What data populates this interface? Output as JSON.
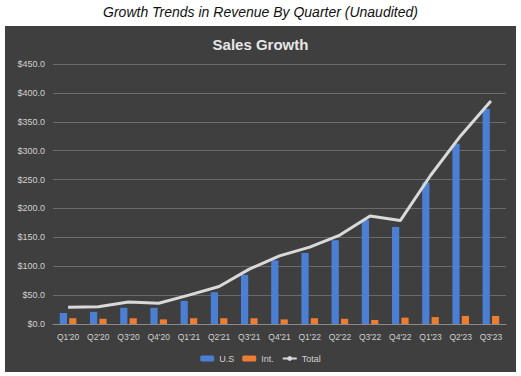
{
  "chart_data": {
    "type": "bar",
    "title": "Sales Growth",
    "subtitle": "Growth Trends in Revenue By Quarter (Unaudited)",
    "categories": [
      "Q1'20",
      "Q2'20",
      "Q3'20",
      "Q4'20",
      "Q1'21",
      "Q2'21",
      "Q3'21",
      "Q4'21",
      "Q1'22",
      "Q2'22",
      "Q3'22",
      "Q4'22",
      "Q1'23",
      "Q2'23",
      "Q3'23"
    ],
    "series": [
      {
        "name": "U.S",
        "type": "bar",
        "color": "#4a7fd4",
        "values": [
          19,
          21,
          28,
          28,
          40,
          55,
          85,
          110,
          123,
          145,
          180,
          168,
          245,
          312,
          372
        ]
      },
      {
        "name": "Int.",
        "type": "bar",
        "color": "#ed7d31",
        "values": [
          10,
          9,
          10,
          8,
          10,
          10,
          10,
          8,
          10,
          9,
          7,
          11,
          12,
          14,
          14
        ]
      },
      {
        "name": "Total",
        "type": "line",
        "color": "#d9d9d9",
        "values": [
          29,
          30,
          38,
          36,
          50,
          65,
          95,
          118,
          133,
          154,
          187,
          179,
          257,
          326,
          386
        ]
      }
    ],
    "ylim": [
      0,
      450
    ],
    "yticks": [
      {
        "value": 0,
        "label": "$0.0"
      },
      {
        "value": 50,
        "label": "$50.0"
      },
      {
        "value": 100,
        "label": "$100.0"
      },
      {
        "value": 150,
        "label": "$150.0"
      },
      {
        "value": 200,
        "label": "$200.0"
      },
      {
        "value": 250,
        "label": "$250.0"
      },
      {
        "value": 300,
        "label": "$300.0"
      },
      {
        "value": 350,
        "label": "$350.0"
      },
      {
        "value": 400,
        "label": "$400.0"
      },
      {
        "value": 450,
        "label": "$450.0"
      }
    ],
    "grid": true,
    "legend": "bottom"
  }
}
